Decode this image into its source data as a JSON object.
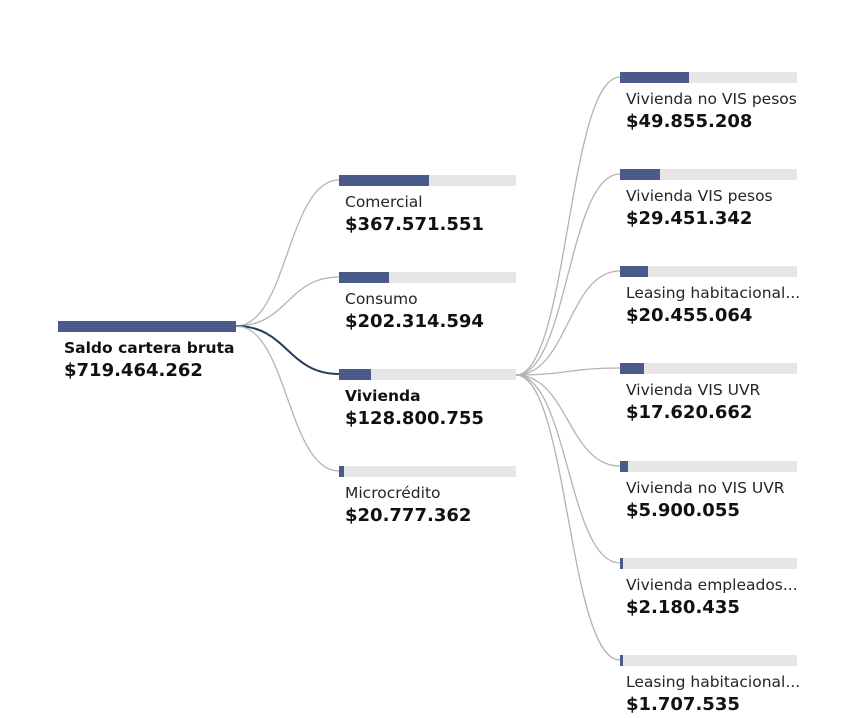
{
  "colors": {
    "bar": "#4a5a8a",
    "track": "#e6e6e6",
    "link": "#b3b3b3",
    "active_link": "#24405a"
  },
  "root": {
    "label": "Saldo cartera bruta",
    "value": "$719.464.262",
    "amount": 719464262
  },
  "level1": [
    {
      "label": "Comercial",
      "value": "$367.571.551",
      "amount": 367571551
    },
    {
      "label": "Consumo",
      "value": "$202.314.594",
      "amount": 202314594
    },
    {
      "label": "Vivienda",
      "value": "$128.800.755",
      "amount": 128800755,
      "expanded": true
    },
    {
      "label": "Microcrédito",
      "value": "$20.777.362",
      "amount": 20777362
    }
  ],
  "level2": [
    {
      "label": "Vivienda no VIS pesos",
      "value": "$49.855.208",
      "amount": 49855208
    },
    {
      "label": "Vivienda VIS pesos",
      "value": "$29.451.342",
      "amount": 29451342
    },
    {
      "label": "Leasing habitacional...",
      "value": "$20.455.064",
      "amount": 20455064
    },
    {
      "label": "Vivienda VIS UVR",
      "value": "$17.620.662",
      "amount": 17620662
    },
    {
      "label": "Vivienda no VIS UVR",
      "value": "$5.900.055",
      "amount": 5900055
    },
    {
      "label": "Vivienda empleados...",
      "value": "$2.180.435",
      "amount": 2180435
    },
    {
      "label": "Leasing habitacional...",
      "value": "$1.707.535",
      "amount": 1707535
    }
  ]
}
